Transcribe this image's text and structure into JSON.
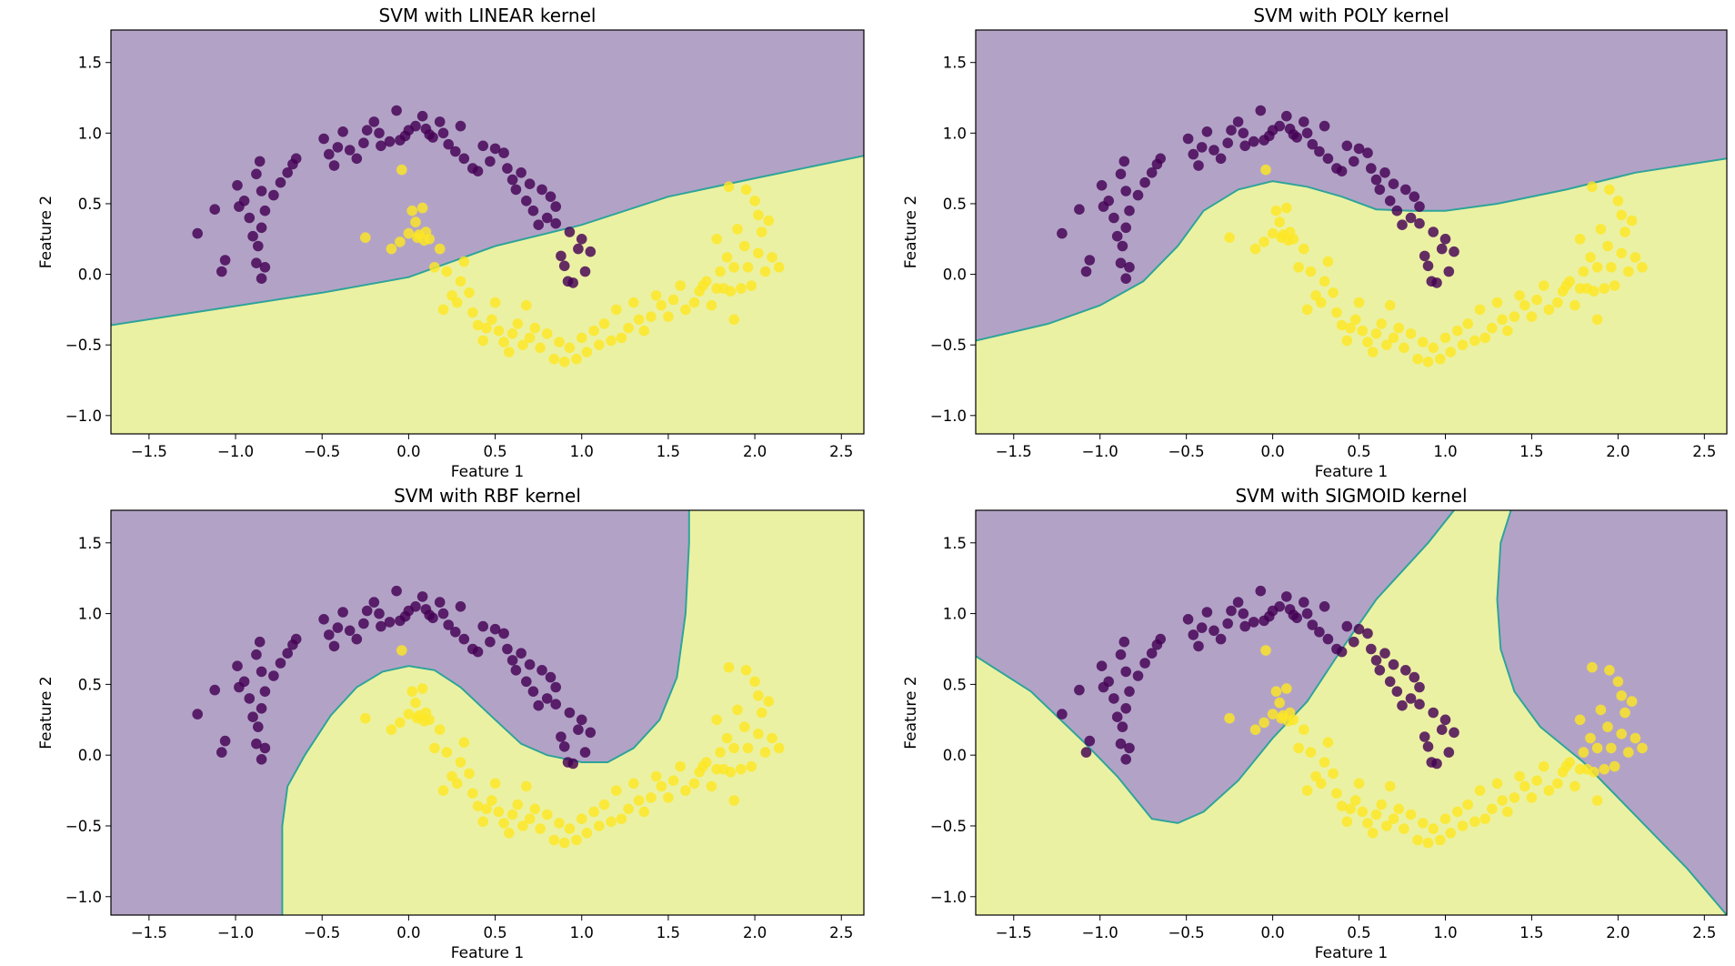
{
  "figure": {
    "colors": {
      "class0_region": "#b2a3c6",
      "class1_region": "#ebf1a3",
      "boundary": "#2fa39a",
      "class0_point": "#440154",
      "class1_point": "#fde725"
    }
  },
  "chart_data": [
    {
      "type": "scatter",
      "title": "SVM with LINEAR kernel",
      "kernel": "linear",
      "xlabel": "Feature 1",
      "ylabel": "Feature 2",
      "xlim": [
        -1.72,
        2.63
      ],
      "ylim": [
        -1.13,
        1.73
      ],
      "xticks": [
        -1.5,
        -1.0,
        -0.5,
        0.0,
        0.5,
        1.0,
        1.5,
        2.0,
        2.5
      ],
      "xtick_labels": [
        "−1.5",
        "−1.0",
        "−0.5",
        "0.0",
        "0.5",
        "1.0",
        "1.5",
        "2.0",
        "2.5"
      ],
      "yticks": [
        -1.0,
        -0.5,
        0.0,
        0.5,
        1.0,
        1.5
      ],
      "ytick_labels": [
        "−1.0",
        "−0.5",
        "0.0",
        "0.5",
        "1.0",
        "1.5"
      ],
      "decision_boundary": [
        [
          -1.72,
          -0.36
        ],
        [
          -0.5,
          -0.13
        ],
        [
          0.0,
          -0.02
        ],
        [
          0.5,
          0.2
        ],
        [
          1.0,
          0.35
        ],
        [
          1.5,
          0.55
        ],
        [
          2.0,
          0.68
        ],
        [
          2.63,
          0.84
        ]
      ]
    },
    {
      "type": "scatter",
      "title": "SVM with POLY kernel",
      "kernel": "poly",
      "xlabel": "Feature 1",
      "ylabel": "Feature 2",
      "xlim": [
        -1.72,
        2.63
      ],
      "ylim": [
        -1.13,
        1.73
      ],
      "xticks": [
        -1.5,
        -1.0,
        -0.5,
        0.0,
        0.5,
        1.0,
        1.5,
        2.0,
        2.5
      ],
      "xtick_labels": [
        "−1.5",
        "−1.0",
        "−0.5",
        "0.0",
        "0.5",
        "1.0",
        "1.5",
        "2.0",
        "2.5"
      ],
      "yticks": [
        -1.0,
        -0.5,
        0.0,
        0.5,
        1.0,
        1.5
      ],
      "ytick_labels": [
        "−1.0",
        "−0.5",
        "0.0",
        "0.5",
        "1.0",
        "1.5"
      ],
      "decision_boundary": [
        [
          -1.72,
          -0.47
        ],
        [
          -1.3,
          -0.35
        ],
        [
          -1.0,
          -0.22
        ],
        [
          -0.75,
          -0.05
        ],
        [
          -0.55,
          0.2
        ],
        [
          -0.4,
          0.45
        ],
        [
          -0.2,
          0.6
        ],
        [
          0.0,
          0.66
        ],
        [
          0.2,
          0.62
        ],
        [
          0.4,
          0.55
        ],
        [
          0.6,
          0.46
        ],
        [
          0.8,
          0.45
        ],
        [
          1.0,
          0.45
        ],
        [
          1.3,
          0.5
        ],
        [
          1.7,
          0.6
        ],
        [
          2.1,
          0.72
        ],
        [
          2.63,
          0.82
        ]
      ]
    },
    {
      "type": "scatter",
      "title": "SVM with RBF kernel",
      "kernel": "rbf",
      "xlabel": "Feature 1",
      "ylabel": "Feature 2",
      "xlim": [
        -1.72,
        2.63
      ],
      "ylim": [
        -1.13,
        1.73
      ],
      "xticks": [
        -1.5,
        -1.0,
        -0.5,
        0.0,
        0.5,
        1.0,
        1.5,
        2.0,
        2.5
      ],
      "xtick_labels": [
        "−1.5",
        "−1.0",
        "−0.5",
        "0.0",
        "0.5",
        "1.0",
        "1.5",
        "2.0",
        "2.5"
      ],
      "yticks": [
        -1.0,
        -0.5,
        0.0,
        0.5,
        1.0,
        1.5
      ],
      "ytick_labels": [
        "−1.0",
        "−0.5",
        "0.0",
        "0.5",
        "1.0",
        "1.5"
      ],
      "decision_boundary": [
        [
          -0.73,
          -1.13
        ],
        [
          -0.73,
          -0.5
        ],
        [
          -0.7,
          -0.22
        ],
        [
          -0.6,
          0.0
        ],
        [
          -0.45,
          0.28
        ],
        [
          -0.3,
          0.48
        ],
        [
          -0.15,
          0.59
        ],
        [
          0.0,
          0.63
        ],
        [
          0.15,
          0.6
        ],
        [
          0.3,
          0.48
        ],
        [
          0.5,
          0.25
        ],
        [
          0.65,
          0.08
        ],
        [
          0.8,
          0.0
        ],
        [
          1.0,
          -0.05
        ],
        [
          1.15,
          -0.05
        ],
        [
          1.3,
          0.05
        ],
        [
          1.45,
          0.25
        ],
        [
          1.55,
          0.55
        ],
        [
          1.6,
          1.0
        ],
        [
          1.62,
          1.5
        ],
        [
          1.62,
          1.73
        ]
      ]
    },
    {
      "type": "scatter",
      "title": "SVM with SIGMOID kernel",
      "kernel": "sigmoid",
      "xlabel": "Feature 1",
      "ylabel": "Feature 2",
      "xlim": [
        -1.72,
        2.63
      ],
      "ylim": [
        -1.13,
        1.73
      ],
      "xticks": [
        -1.5,
        -1.0,
        -0.5,
        0.0,
        0.5,
        1.0,
        1.5,
        2.0,
        2.5
      ],
      "xtick_labels": [
        "−1.5",
        "−1.0",
        "−0.5",
        "0.0",
        "0.5",
        "1.0",
        "1.5",
        "2.0",
        "2.5"
      ],
      "yticks": [
        -1.0,
        -0.5,
        0.0,
        0.5,
        1.0,
        1.5
      ],
      "ytick_labels": [
        "−1.0",
        "−0.5",
        "0.0",
        "0.5",
        "1.0",
        "1.5"
      ],
      "decision_boundary_left": [
        [
          -1.72,
          0.7
        ],
        [
          -1.4,
          0.45
        ],
        [
          -1.1,
          0.1
        ],
        [
          -0.9,
          -0.15
        ],
        [
          -0.7,
          -0.45
        ],
        [
          -0.55,
          -0.48
        ],
        [
          -0.4,
          -0.4
        ],
        [
          -0.2,
          -0.18
        ],
        [
          0.0,
          0.12
        ],
        [
          0.2,
          0.38
        ],
        [
          0.4,
          0.75
        ],
        [
          0.6,
          1.1
        ],
        [
          0.9,
          1.5
        ],
        [
          1.05,
          1.73
        ]
      ],
      "decision_boundary_right": [
        [
          1.38,
          1.73
        ],
        [
          1.32,
          1.5
        ],
        [
          1.3,
          1.1
        ],
        [
          1.32,
          0.75
        ],
        [
          1.4,
          0.45
        ],
        [
          1.55,
          0.2
        ],
        [
          1.8,
          -0.05
        ],
        [
          2.0,
          -0.3
        ],
        [
          2.2,
          -0.55
        ],
        [
          2.4,
          -0.8
        ],
        [
          2.63,
          -1.13
        ]
      ]
    }
  ],
  "points": {
    "class0": [
      [
        -1.22,
        0.29
      ],
      [
        -1.12,
        0.46
      ],
      [
        -1.06,
        0.1
      ],
      [
        -1.08,
        0.02
      ],
      [
        -0.99,
        0.63
      ],
      [
        -0.98,
        0.48
      ],
      [
        -0.95,
        0.52
      ],
      [
        -0.92,
        0.4
      ],
      [
        -0.9,
        0.27
      ],
      [
        -0.88,
        0.71
      ],
      [
        -0.86,
        0.8
      ],
      [
        -0.85,
        0.59
      ],
      [
        -0.83,
        0.45
      ],
      [
        -0.85,
        0.33
      ],
      [
        -0.87,
        0.2
      ],
      [
        -0.88,
        0.08
      ],
      [
        -0.83,
        0.05
      ],
      [
        -0.85,
        -0.03
      ],
      [
        -0.78,
        0.56
      ],
      [
        -0.74,
        0.65
      ],
      [
        -0.7,
        0.72
      ],
      [
        -0.67,
        0.78
      ],
      [
        -0.65,
        0.82
      ],
      [
        -0.49,
        0.96
      ],
      [
        -0.46,
        0.85
      ],
      [
        -0.43,
        0.77
      ],
      [
        -0.41,
        0.9
      ],
      [
        -0.38,
        1.01
      ],
      [
        -0.34,
        0.88
      ],
      [
        -0.3,
        0.82
      ],
      [
        -0.26,
        0.93
      ],
      [
        -0.24,
        1.02
      ],
      [
        -0.2,
        1.08
      ],
      [
        -0.17,
        1.0
      ],
      [
        -0.16,
        0.91
      ],
      [
        -0.11,
        0.94
      ],
      [
        -0.07,
        1.16
      ],
      [
        -0.05,
        0.95
      ],
      [
        -0.02,
        0.98
      ],
      [
        0.0,
        1.02
      ],
      [
        0.04,
        1.05
      ],
      [
        0.08,
        1.12
      ],
      [
        0.1,
        1.03
      ],
      [
        0.12,
        0.99
      ],
      [
        0.14,
        0.97
      ],
      [
        0.18,
        1.08
      ],
      [
        0.2,
        1.0
      ],
      [
        0.23,
        0.92
      ],
      [
        0.27,
        0.87
      ],
      [
        0.3,
        1.05
      ],
      [
        0.32,
        0.82
      ],
      [
        0.37,
        0.75
      ],
      [
        0.4,
        0.73
      ],
      [
        0.43,
        0.91
      ],
      [
        0.47,
        0.8
      ],
      [
        0.5,
        0.89
      ],
      [
        0.55,
        0.86
      ],
      [
        0.57,
        0.75
      ],
      [
        0.6,
        0.67
      ],
      [
        0.62,
        0.6
      ],
      [
        0.65,
        0.72
      ],
      [
        0.68,
        0.52
      ],
      [
        0.7,
        0.64
      ],
      [
        0.72,
        0.45
      ],
      [
        0.75,
        0.35
      ],
      [
        0.77,
        0.6
      ],
      [
        0.8,
        0.4
      ],
      [
        0.82,
        0.55
      ],
      [
        0.85,
        0.48
      ],
      [
        0.85,
        0.36
      ],
      [
        0.88,
        0.13
      ],
      [
        0.9,
        0.06
      ],
      [
        0.93,
        0.3
      ],
      [
        0.95,
        -0.06
      ],
      [
        0.98,
        0.18
      ],
      [
        1.0,
        0.25
      ],
      [
        1.02,
        0.02
      ],
      [
        1.05,
        0.16
      ],
      [
        0.92,
        -0.05
      ]
    ],
    "class1": [
      [
        -0.25,
        0.26
      ],
      [
        -0.04,
        0.74
      ],
      [
        -0.1,
        0.18
      ],
      [
        -0.05,
        0.23
      ],
      [
        0.0,
        0.29
      ],
      [
        0.02,
        0.45
      ],
      [
        0.04,
        0.37
      ],
      [
        0.05,
        0.26
      ],
      [
        0.06,
        0.28
      ],
      [
        0.08,
        0.47
      ],
      [
        0.09,
        0.24
      ],
      [
        0.1,
        0.3
      ],
      [
        0.12,
        0.25
      ],
      [
        0.15,
        0.05
      ],
      [
        0.18,
        0.18
      ],
      [
        0.22,
        0.02
      ],
      [
        0.25,
        -0.15
      ],
      [
        0.28,
        -0.2
      ],
      [
        0.3,
        -0.05
      ],
      [
        0.32,
        0.09
      ],
      [
        0.35,
        -0.13
      ],
      [
        0.37,
        -0.27
      ],
      [
        0.4,
        -0.36
      ],
      [
        0.43,
        -0.47
      ],
      [
        0.45,
        -0.38
      ],
      [
        0.48,
        -0.32
      ],
      [
        0.5,
        -0.2
      ],
      [
        0.52,
        -0.4
      ],
      [
        0.55,
        -0.48
      ],
      [
        0.58,
        -0.55
      ],
      [
        0.6,
        -0.42
      ],
      [
        0.63,
        -0.35
      ],
      [
        0.66,
        -0.5
      ],
      [
        0.7,
        -0.45
      ],
      [
        0.73,
        -0.38
      ],
      [
        0.76,
        -0.52
      ],
      [
        0.8,
        -0.42
      ],
      [
        0.84,
        -0.6
      ],
      [
        0.87,
        -0.48
      ],
      [
        0.9,
        -0.62
      ],
      [
        0.93,
        -0.52
      ],
      [
        0.97,
        -0.6
      ],
      [
        1.0,
        -0.45
      ],
      [
        1.03,
        -0.55
      ],
      [
        1.07,
        -0.4
      ],
      [
        1.1,
        -0.5
      ],
      [
        1.13,
        -0.35
      ],
      [
        1.17,
        -0.47
      ],
      [
        1.2,
        -0.25
      ],
      [
        1.23,
        -0.45
      ],
      [
        1.27,
        -0.38
      ],
      [
        1.3,
        -0.2
      ],
      [
        1.33,
        -0.32
      ],
      [
        1.36,
        -0.4
      ],
      [
        1.4,
        -0.3
      ],
      [
        1.43,
        -0.15
      ],
      [
        1.46,
        -0.22
      ],
      [
        1.5,
        -0.3
      ],
      [
        1.53,
        -0.18
      ],
      [
        1.57,
        -0.08
      ],
      [
        1.6,
        -0.25
      ],
      [
        1.65,
        -0.2
      ],
      [
        1.68,
        -0.12
      ],
      [
        1.72,
        -0.05
      ],
      [
        1.75,
        -0.22
      ],
      [
        1.78,
        -0.1
      ],
      [
        1.8,
        0.02
      ],
      [
        1.82,
        -0.1
      ],
      [
        1.84,
        0.12
      ],
      [
        1.86,
        -0.12
      ],
      [
        1.88,
        0.05
      ],
      [
        1.9,
        0.32
      ],
      [
        1.92,
        -0.1
      ],
      [
        1.94,
        0.2
      ],
      [
        1.96,
        0.05
      ],
      [
        1.98,
        -0.08
      ],
      [
        2.0,
        0.52
      ],
      [
        2.02,
        0.15
      ],
      [
        2.04,
        0.3
      ],
      [
        2.06,
        0.02
      ],
      [
        2.08,
        0.38
      ],
      [
        2.1,
        0.12
      ],
      [
        2.14,
        0.05
      ],
      [
        1.85,
        0.62
      ],
      [
        1.95,
        0.6
      ],
      [
        2.02,
        0.42
      ],
      [
        1.78,
        0.25
      ],
      [
        1.88,
        -0.32
      ],
      [
        1.7,
        -0.08
      ],
      [
        0.68,
        -0.22
      ],
      [
        0.2,
        -0.25
      ]
    ]
  }
}
